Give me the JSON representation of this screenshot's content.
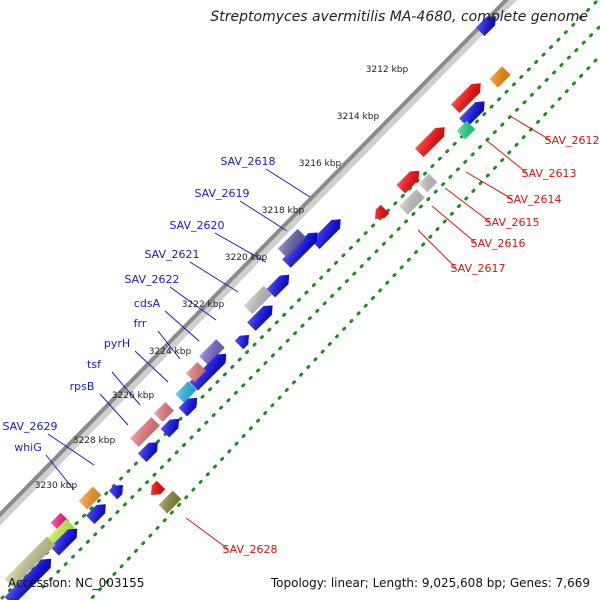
{
  "title": "Streptomyces avermitilis MA-4680, complete genome",
  "footer": {
    "accession": "Accession: NC_003155",
    "summary": "Topology: linear; Length: 9,025,608 bp; Genes: 7,669"
  },
  "ruler": {
    "ticks": [
      "3212 kbp",
      "3214 kbp",
      "3216 kbp",
      "3218 kbp",
      "3220 kbp",
      "3222 kbp",
      "3224 kbp",
      "3226 kbp",
      "3228 kbp",
      "3230 kbp"
    ]
  },
  "colors": {
    "reverse_label": "#1a1acc",
    "forward_label": "#dd1111",
    "axis": "#8a8a8a",
    "dots": "#1e8c1e"
  },
  "genes_left": [
    "SAV_2618",
    "SAV_2619",
    "SAV_2620",
    "SAV_2621",
    "SAV_2622",
    "cdsA",
    "frr",
    "pyrH",
    "tsf",
    "rpsB",
    "SAV_2629",
    "whiG"
  ],
  "genes_right": [
    "SAV_2612",
    "SAV_2613",
    "SAV_2614",
    "SAV_2615",
    "SAV_2616",
    "SAV_2617",
    "SAV_2628"
  ]
}
